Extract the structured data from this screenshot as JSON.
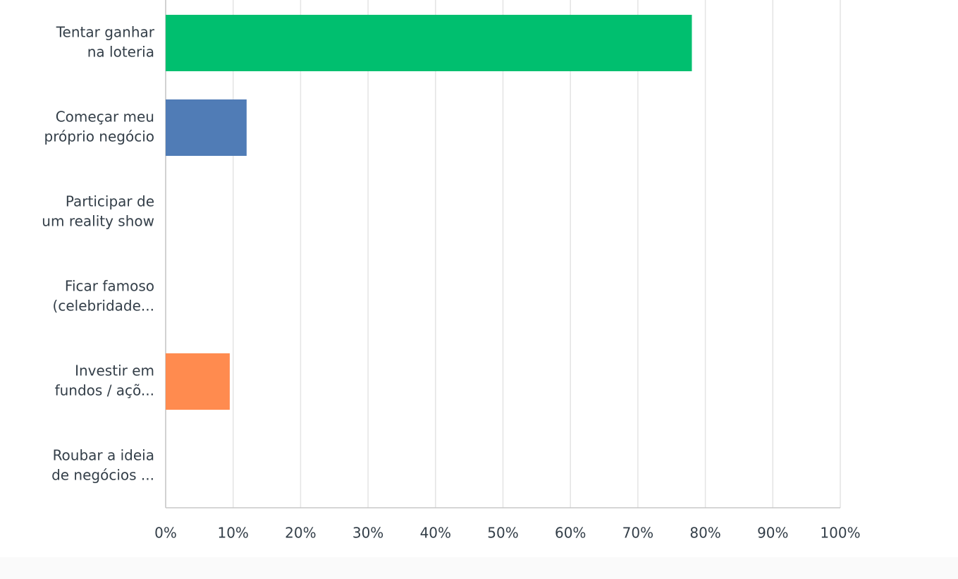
{
  "chart_data": {
    "type": "bar",
    "orientation": "horizontal",
    "categories": [
      [
        "Tentar ganhar",
        "na loteria"
      ],
      [
        "Começar meu",
        "próprio negócio"
      ],
      [
        "Participar de",
        "um reality show"
      ],
      [
        "Ficar famoso",
        "(celebridade..."
      ],
      [
        "Investir em",
        "fundos / açõ..."
      ],
      [
        "Roubar a ideia",
        "de negócios ..."
      ]
    ],
    "values": [
      78,
      12,
      0,
      0,
      9.5,
      0
    ],
    "colors": [
      "#00bf6f",
      "#507cb6",
      "#507cb6",
      "#507cb6",
      "#ff8b4f",
      "#507cb6"
    ],
    "xlim": [
      0,
      100
    ],
    "xticks": [
      {
        "value": 0,
        "label": "0%"
      },
      {
        "value": 10,
        "label": "10%"
      },
      {
        "value": 20,
        "label": "20%"
      },
      {
        "value": 30,
        "label": "30%"
      },
      {
        "value": 40,
        "label": "40%"
      },
      {
        "value": 50,
        "label": "50%"
      },
      {
        "value": 60,
        "label": "60%"
      },
      {
        "value": 70,
        "label": "70%"
      },
      {
        "value": 80,
        "label": "80%"
      },
      {
        "value": 90,
        "label": "90%"
      },
      {
        "value": 100,
        "label": "100%"
      }
    ],
    "grid": true
  }
}
